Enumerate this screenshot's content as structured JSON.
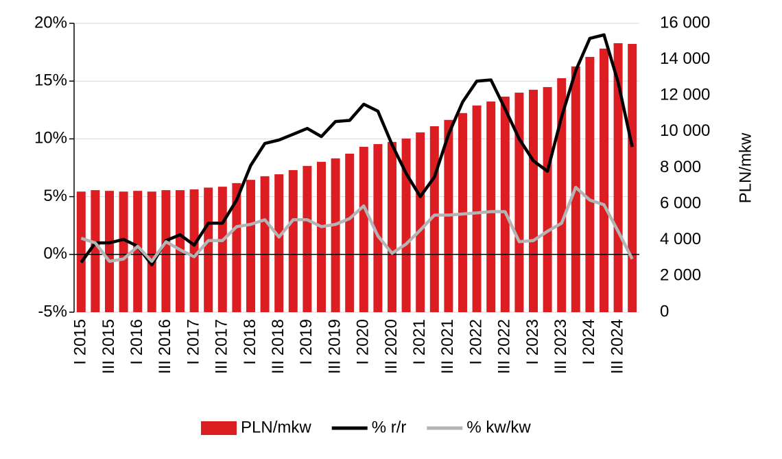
{
  "chart_data": {
    "type": "bar",
    "categories": [
      "I 2015",
      null,
      "III 2015",
      null,
      "I 2016",
      null,
      "III 2016",
      null,
      "I 2017",
      null,
      "III 2017",
      null,
      "I 2018",
      null,
      "III 2018",
      null,
      "I 2019",
      null,
      "III 2019",
      null,
      "I 2020",
      null,
      "III 2020",
      null,
      "I 2021",
      null,
      "III 2021",
      null,
      "I 2022",
      null,
      "III 2022",
      null,
      "I 2023",
      null,
      "III 2023",
      null,
      "I 2024",
      null,
      "III 2024",
      null
    ],
    "series": [
      {
        "name": "PLN/mkw",
        "type": "bar",
        "axis": "y2",
        "color": "#dc1e23",
        "values": [
          6680,
          6760,
          6720,
          6680,
          6720,
          6680,
          6760,
          6760,
          6800,
          6900,
          6950,
          7150,
          7330,
          7530,
          7640,
          7870,
          8100,
          8330,
          8520,
          8780,
          9160,
          9310,
          9430,
          9620,
          9960,
          10300,
          10650,
          11030,
          11450,
          11670,
          11940,
          12160,
          12320,
          12470,
          12960,
          13610,
          14140,
          14600,
          14900,
          14860
        ]
      },
      {
        "name": "% r/r",
        "type": "line",
        "color": "#000000",
        "values": [
          -0.7,
          1.0,
          1.0,
          1.3,
          0.7,
          -0.9,
          1.2,
          1.7,
          0.8,
          2.7,
          2.7,
          4.7,
          7.7,
          9.6,
          9.9,
          10.4,
          10.9,
          10.2,
          11.5,
          11.6,
          13.0,
          12.4,
          9.5,
          7.0,
          5.0,
          6.7,
          10.4,
          13.2,
          15.0,
          15.1,
          12.6,
          10.0,
          8.1,
          7.2,
          11.9,
          15.9,
          18.7,
          19.0,
          14.9,
          9.3
        ]
      },
      {
        "name": "% kw/kw",
        "type": "line",
        "color": "#b4b4b4",
        "values": [
          1.4,
          1.0,
          -0.6,
          -0.4,
          0.7,
          -0.6,
          1.1,
          0.4,
          -0.2,
          1.2,
          1.2,
          2.4,
          2.6,
          3.0,
          1.5,
          3.0,
          3.0,
          2.4,
          2.6,
          3.1,
          4.2,
          1.6,
          0.1,
          0.9,
          2.1,
          3.4,
          3.4,
          3.5,
          3.6,
          3.7,
          3.7,
          1.1,
          1.2,
          2.0,
          2.7,
          5.8,
          4.7,
          4.3,
          2.0,
          -0.4
        ]
      }
    ],
    "ylim": [
      -5,
      20
    ],
    "yticks": [
      {
        "value": -5,
        "label": "-5%"
      },
      {
        "value": 0,
        "label": "0%"
      },
      {
        "value": 5,
        "label": "5%"
      },
      {
        "value": 10,
        "label": "10%"
      },
      {
        "value": 15,
        "label": "15%"
      },
      {
        "value": 20,
        "label": "20%"
      }
    ],
    "y2lim": [
      0,
      16000
    ],
    "y2ticks": [
      0,
      {
        "value": 2000,
        "label": "2 000"
      },
      {
        "value": 4000,
        "label": "4 000"
      },
      {
        "value": 6000,
        "label": "6 000"
      },
      {
        "value": 8000,
        "label": "8 000"
      },
      {
        "value": 10000,
        "label": "10 000"
      },
      {
        "value": 12000,
        "label": "12 000"
      },
      {
        "value": 14000,
        "label": "14 000"
      },
      {
        "value": 16000,
        "label": "16 000"
      }
    ],
    "y2label": "PLN/mkw",
    "grid": true,
    "legend": "bottom"
  }
}
